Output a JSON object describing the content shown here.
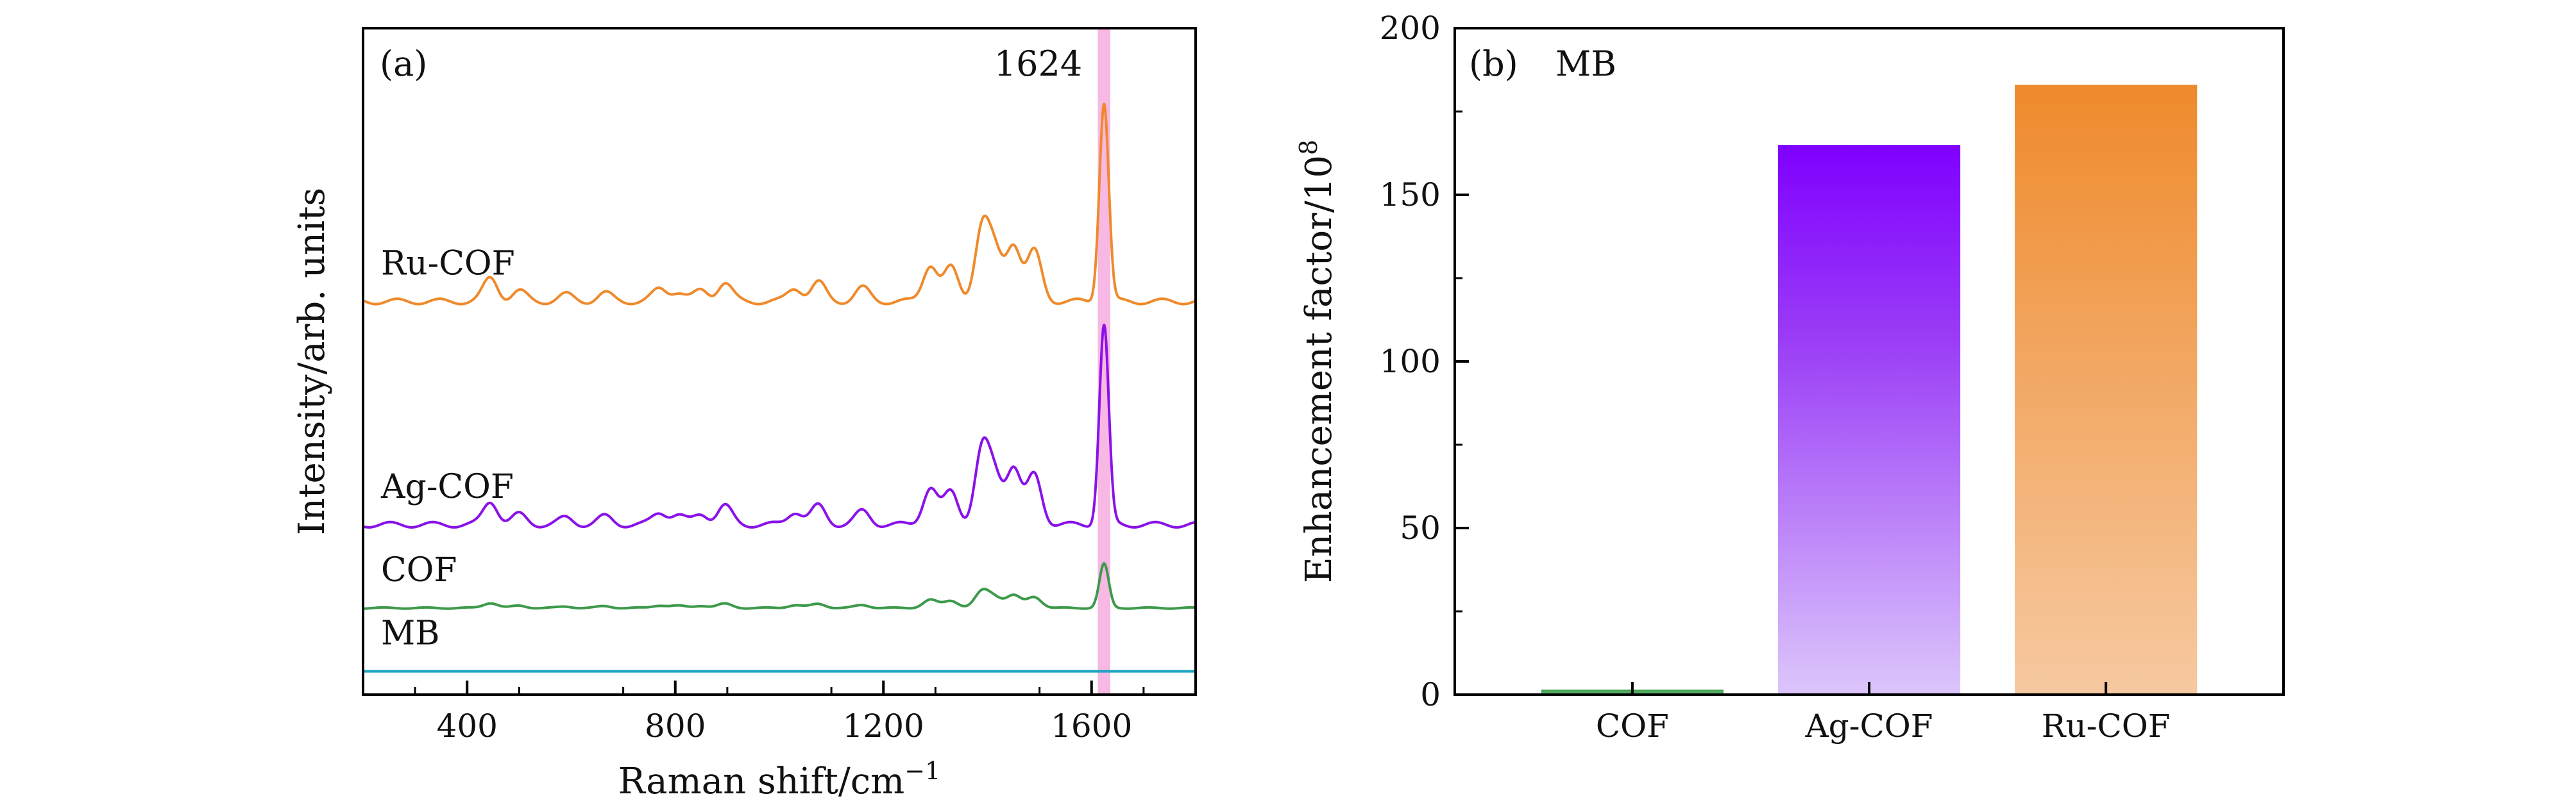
{
  "chart_data": [
    {
      "panel": "(a)",
      "type": "line",
      "xlabel": "Raman shift/cm",
      "xlabel_sup": "−1",
      "ylabel": "Intensity/arb. units",
      "xlim": [
        200,
        1800
      ],
      "ylim": [
        0,
        1
      ],
      "x_ticks": [
        400,
        800,
        1200,
        1600
      ],
      "x_tick_labels": [
        "400",
        "800",
        "1200",
        "1600"
      ],
      "y_ticks_visible": false,
      "highlight": {
        "x": 1624,
        "label": "1624",
        "color": "#f7b8e3"
      },
      "series": [
        {
          "name": "Ru-COF",
          "color": "#ef8a2c",
          "baseline": 0.59,
          "scale": 1.0
        },
        {
          "name": "Ag-COF",
          "color": "#8a12e8",
          "baseline": 0.255,
          "scale": 1.0
        },
        {
          "name": "COF",
          "color": "#3c9a4a",
          "baseline": 0.13,
          "scale": 0.22
        },
        {
          "name": "MB",
          "color": "#1aa5c0",
          "baseline": 0.035,
          "scale": 0.0
        }
      ],
      "peaks": [
        {
          "x": 445,
          "h": 0.035
        },
        {
          "x": 500,
          "h": 0.015
        },
        {
          "x": 590,
          "h": 0.01
        },
        {
          "x": 665,
          "h": 0.012
        },
        {
          "x": 770,
          "h": 0.018
        },
        {
          "x": 805,
          "h": 0.014
        },
        {
          "x": 850,
          "h": 0.016
        },
        {
          "x": 895,
          "h": 0.028
        },
        {
          "x": 1030,
          "h": 0.02
        },
        {
          "x": 1075,
          "h": 0.028
        },
        {
          "x": 1160,
          "h": 0.02
        },
        {
          "x": 1290,
          "h": 0.055
        },
        {
          "x": 1330,
          "h": 0.05
        },
        {
          "x": 1390,
          "h": 0.11
        },
        {
          "x": 1415,
          "h": 0.065
        },
        {
          "x": 1450,
          "h": 0.085
        },
        {
          "x": 1490,
          "h": 0.075
        },
        {
          "x": 1624,
          "h": 0.3
        }
      ]
    },
    {
      "panel": "(b)",
      "annotation": "MB",
      "type": "bar",
      "categories": [
        "COF",
        "Ag-COF",
        "Ru-COF"
      ],
      "values": [
        1.5,
        165,
        183
      ],
      "colors": [
        "#3c9a4a",
        "#8a12e8",
        "#ef8a2c"
      ],
      "ylabel": "Enhancement factor/10",
      "ylabel_sup": "8",
      "ylim": [
        0,
        200
      ],
      "y_ticks": [
        0,
        50,
        100,
        150,
        200
      ],
      "y_tick_labels": [
        "0",
        "50",
        "100",
        "150",
        "200"
      ]
    }
  ]
}
